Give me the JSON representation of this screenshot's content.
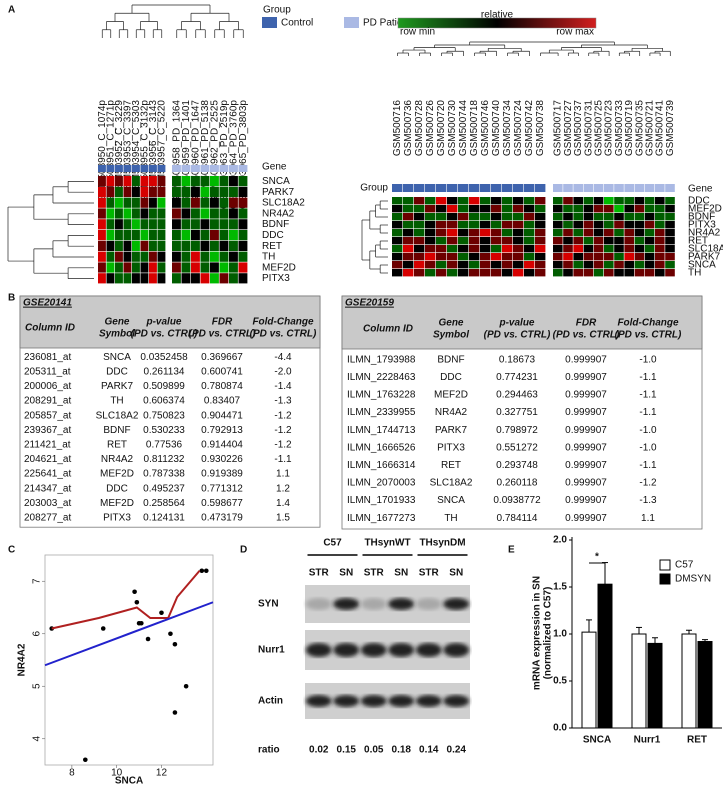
{
  "panel_labels": [
    "A",
    "B",
    "C",
    "D",
    "E"
  ],
  "group_legend": {
    "title": "Group",
    "items": [
      {
        "name": "Control",
        "color": "#3e63ad"
      },
      {
        "name": "PD Patient",
        "color": "#aab9e4"
      }
    ]
  },
  "color_scale": {
    "title": "relative",
    "min_label": "row min",
    "max_label": "row max"
  },
  "heatmaps": [
    {
      "group_label": "Group",
      "gene_label": "Gene",
      "samples": [
        "GSM503950_C_1074p",
        "GSM503951_C_1271p",
        "GSM503952_C_3229",
        "GSM503953_C_3397",
        "GSM503954_C_5303",
        "GSM503955_C_3132p",
        "GSM503956_C_3143",
        "GSM503957_C_5220",
        "GSM503958_PD_1364",
        "GSM503959_PD_1401",
        "GSM503960_PD_1647",
        "GSM503961_PD_5138",
        "GSM503962_PD_2525",
        "GSM503963_PD_2519p",
        "GSM503964_PD_3760p",
        "GSM503965_PD_3803p"
      ],
      "groups": [
        0,
        0,
        0,
        0,
        0,
        0,
        0,
        0,
        1,
        1,
        1,
        1,
        1,
        1,
        1,
        1
      ],
      "genes": [
        "SNCA",
        "PARK7",
        "SLC18A2",
        "NR4A2",
        "BDNF",
        "DDC",
        "RET",
        "TH",
        "MEF2D",
        "PITX3"
      ],
      "matrix": [
        [
          1,
          2,
          1,
          2,
          -1,
          2,
          2,
          1,
          -1,
          -2,
          -1,
          -1,
          -2,
          -1,
          0,
          -1
        ],
        [
          2,
          1,
          -1,
          1,
          0,
          2,
          1,
          1,
          -1,
          -1,
          0,
          -2,
          -1,
          -1,
          -1,
          0
        ],
        [
          2,
          -1,
          -2,
          -1,
          -1,
          1,
          0,
          -2,
          0,
          -1,
          1,
          -1,
          0,
          -1,
          1,
          1
        ],
        [
          1,
          -2,
          -1,
          -2,
          -1,
          0,
          -1,
          -1,
          1,
          0,
          -1,
          -2,
          -1,
          -1,
          0,
          -1
        ],
        [
          2,
          -1,
          0,
          -1,
          -2,
          -1,
          -1,
          -1,
          0,
          -1,
          -1,
          0,
          -1,
          -1,
          -1,
          0
        ],
        [
          2,
          -2,
          -1,
          -1,
          -1,
          -2,
          -1,
          -1,
          -1,
          -2,
          0,
          -1,
          1,
          -1,
          -2,
          -1
        ],
        [
          1,
          0,
          -1,
          0,
          -2,
          1,
          -1,
          -1,
          -1,
          -1,
          -1,
          0,
          -1,
          0,
          -1,
          0
        ],
        [
          2,
          -1,
          1,
          0,
          -1,
          -1,
          1,
          0,
          0,
          -1,
          2,
          -1,
          -2,
          -1,
          0,
          -1
        ],
        [
          1,
          -2,
          -1,
          1,
          -1,
          0,
          2,
          -1,
          1,
          -1,
          2,
          -1,
          0,
          -2,
          -1,
          2
        ],
        [
          2,
          0,
          -1,
          -1,
          0,
          0,
          2,
          0,
          -1,
          0,
          0,
          2,
          -2,
          1,
          -1,
          0
        ]
      ]
    },
    {
      "group_label": "Group",
      "gene_label": "Gene",
      "samples": [
        "GSM500716",
        "GSM500736",
        "GSM500728",
        "GSM500726",
        "GSM500720",
        "GSM500730",
        "GSM500744",
        "GSM500718",
        "GSM500746",
        "GSM500740",
        "GSM500734",
        "GSM500724",
        "GSM500742",
        "GSM500738",
        "GSM500717",
        "GSM500727",
        "GSM500737",
        "GSM500731",
        "GSM500725",
        "GSM500723",
        "GSM500733",
        "GSM500719",
        "GSM500735",
        "GSM500721",
        "GSM500741",
        "GSM500739"
      ],
      "groups": [
        0,
        0,
        0,
        0,
        0,
        0,
        0,
        0,
        0,
        0,
        0,
        0,
        0,
        0,
        1,
        1,
        1,
        1,
        1,
        1,
        1,
        1,
        1,
        1,
        1,
        1
      ],
      "genes": [
        "DDC",
        "MEF2D",
        "BDNF",
        "PITX3",
        "NR4A2",
        "RET",
        "SLC18A2",
        "PARK7",
        "SNCA",
        "TH"
      ],
      "matrix": [
        [
          -1,
          -1,
          1,
          -1,
          2,
          0,
          -1,
          2,
          -1,
          0,
          -1,
          0,
          -1,
          1,
          -1,
          1,
          0,
          -1,
          0,
          -2,
          -1,
          -1,
          0,
          -1,
          0,
          -1
        ],
        [
          0,
          -1,
          -1,
          1,
          0,
          2,
          -1,
          0,
          0,
          1,
          -1,
          1,
          0,
          -1,
          0,
          -1,
          -1,
          0,
          1,
          1,
          -2,
          0,
          1,
          -1,
          -1,
          0
        ],
        [
          -1,
          1,
          0,
          -1,
          -1,
          0,
          1,
          -1,
          -1,
          0,
          -1,
          -1,
          1,
          0,
          -1,
          0,
          -1,
          0,
          -1,
          -1,
          0,
          -1,
          -1,
          0,
          -1,
          -1
        ],
        [
          0,
          -1,
          -1,
          0,
          1,
          1,
          -1,
          -1,
          0,
          -1,
          1,
          1,
          -1,
          0,
          0,
          -1,
          0,
          1,
          0,
          -1,
          1,
          0,
          0,
          1,
          -1,
          0
        ],
        [
          -1,
          0,
          -1,
          0,
          1,
          2,
          0,
          1,
          2,
          1,
          -1,
          0,
          -1,
          1,
          -1,
          1,
          -1,
          1,
          0,
          1,
          -1,
          1,
          0,
          -1,
          1,
          0
        ],
        [
          0,
          1,
          1,
          0,
          -1,
          1,
          -1,
          1,
          0,
          1,
          1,
          0,
          -1,
          1,
          1,
          0,
          1,
          -1,
          1,
          0,
          0,
          1,
          -1,
          0,
          1,
          0
        ],
        [
          -1,
          2,
          0,
          1,
          1,
          -1,
          0,
          1,
          0,
          -1,
          2,
          1,
          0,
          2,
          0,
          1,
          2,
          0,
          1,
          -1,
          0,
          1,
          0,
          -1,
          1,
          0
        ],
        [
          0,
          1,
          1,
          2,
          1,
          1,
          -1,
          0,
          1,
          2,
          1,
          1,
          -1,
          0,
          1,
          2,
          0,
          1,
          1,
          1,
          -1,
          2,
          1,
          0,
          1,
          1
        ],
        [
          1,
          0,
          2,
          1,
          -1,
          1,
          0,
          -1,
          1,
          0,
          1,
          0,
          2,
          1,
          0,
          1,
          -1,
          0,
          1,
          -1,
          1,
          0,
          -1,
          0,
          1,
          -1
        ],
        [
          0,
          2,
          1,
          -1,
          1,
          -1,
          0,
          1,
          1,
          1,
          0,
          2,
          0,
          1,
          -1,
          0,
          1,
          1,
          -1,
          1,
          0,
          0,
          1,
          1,
          0,
          1
        ]
      ]
    }
  ],
  "tables": [
    {
      "title": "GSE20141",
      "columns": [
        [
          "Column ID"
        ],
        [
          "Gene",
          "Symbol"
        ],
        [
          "p-value",
          "(PD vs. CTRL)"
        ],
        [
          "FDR",
          "(PD vs. CTRL)"
        ],
        [
          "Fold-Change",
          "(PD vs. CTRL)"
        ]
      ],
      "rows": [
        [
          "236081_at",
          "SNCA",
          "0.0352458",
          "0.369667",
          "-4.4"
        ],
        [
          "205311_at",
          "DDC",
          "0.261134",
          "0.600741",
          "-2.0"
        ],
        [
          "200006_at",
          "PARK7",
          "0.509899",
          "0.780874",
          "-1.4"
        ],
        [
          "208291_at",
          "TH",
          "0.606374",
          "0.83407",
          "-1.3"
        ],
        [
          "205857_at",
          "SLC18A2",
          "0.750823",
          "0.904471",
          "-1.2"
        ],
        [
          "239367_at",
          "BDNF",
          "0.530233",
          "0.792913",
          "-1.2"
        ],
        [
          "211421_at",
          "RET",
          "0.77536",
          "0.914404",
          "-1.2"
        ],
        [
          "204621_at",
          "NR4A2",
          "0.811232",
          "0.930226",
          "-1.1"
        ],
        [
          "225641_at",
          "MEF2D",
          "0.787338",
          "0.919389",
          "1.1"
        ],
        [
          "214347_at",
          "DDC",
          "0.495237",
          "0.771312",
          "1.2"
        ],
        [
          "203003_at",
          "MEF2D",
          "0.258564",
          "0.598677",
          "1.4"
        ],
        [
          "208277_at",
          "PITX3",
          "0.124131",
          "0.473179",
          "1.5"
        ]
      ]
    },
    {
      "title": "GSE20159",
      "columns": [
        [
          "Column ID"
        ],
        [
          "Gene",
          "Symbol"
        ],
        [
          "p-value",
          "(PD vs. CTRL)"
        ],
        [
          "FDR",
          "(PD vs. CTRL)"
        ],
        [
          "Fold-Change",
          "(PD vs. CTRL)"
        ]
      ],
      "rows": [
        [
          "ILMN_1793988",
          "BDNF",
          "0.18673",
          "0.999907",
          "-1.0"
        ],
        [
          "ILMN_2228463",
          "DDC",
          "0.774231",
          "0.999907",
          "-1.1"
        ],
        [
          "ILMN_1763228",
          "MEF2D",
          "0.294463",
          "0.999907",
          "-1.1"
        ],
        [
          "ILMN_2339955",
          "NR4A2",
          "0.327751",
          "0.999907",
          "-1.1"
        ],
        [
          "ILMN_1744713",
          "PARK7",
          "0.798972",
          "0.999907",
          "-1.0"
        ],
        [
          "ILMN_1666526",
          "PITX3",
          "0.551272",
          "0.999907",
          "-1.0"
        ],
        [
          "ILMN_1666314",
          "RET",
          "0.293748",
          "0.999907",
          "-1.1"
        ],
        [
          "ILMN_2070003",
          "SLC18A2",
          "0.260118",
          "0.999907",
          "-1.2"
        ],
        [
          "ILMN_1701933",
          "SNCA",
          "0.0938772",
          "0.999907",
          "-1.3"
        ],
        [
          "ILMN_1677273",
          "TH",
          "0.784114",
          "0.999907",
          "1.1"
        ]
      ]
    }
  ],
  "chart_data": [
    {
      "type": "scatter",
      "xlabel": "SNCA",
      "ylabel": "NR4A2",
      "xlim": [
        6.8,
        14.3
      ],
      "ylim": [
        3.5,
        7.5
      ],
      "xticks": [
        8,
        10,
        12
      ],
      "yticks": [
        4,
        5,
        6,
        7
      ],
      "series": [
        {
          "mode": "markers",
          "color": "#000000",
          "x": [
            7.1,
            9.4,
            10.8,
            10.9,
            11.0,
            11.1,
            11.4,
            12.0,
            12.4,
            12.6,
            13.1,
            12.6,
            13.8,
            14.0,
            8.6
          ],
          "y": [
            6.1,
            6.1,
            6.8,
            6.6,
            6.2,
            6.2,
            5.9,
            6.4,
            6.0,
            5.8,
            5.0,
            4.5,
            7.2,
            7.2,
            3.6
          ]
        },
        {
          "mode": "line",
          "color": "#b02020",
          "x": [
            7.1,
            9.2,
            10.9,
            11.5,
            12.3,
            12.7,
            13.7
          ],
          "y": [
            6.1,
            6.3,
            6.5,
            6.3,
            6.3,
            6.7,
            7.2
          ]
        },
        {
          "mode": "line",
          "color": "#2222cc",
          "x": [
            6.8,
            14.3
          ],
          "y": [
            5.4,
            6.6
          ]
        }
      ]
    },
    {
      "type": "bar",
      "ylabel": [
        "mRNA expression in SN",
        "(normalized to C57)"
      ],
      "categories": [
        "SNCA",
        "Nurr1",
        "RET"
      ],
      "ylim": [
        0,
        2.0
      ],
      "yticks": [
        {
          "value": 0,
          "label": "0.0"
        },
        {
          "value": 0.5,
          "label": "0.5"
        },
        {
          "value": 1.0,
          "label": "1.0"
        },
        {
          "value": 1.5,
          "label": "1.5"
        },
        {
          "value": 2.0,
          "label": "2.0"
        }
      ],
      "legend": "upper right",
      "series": [
        {
          "name": "C57",
          "color": "#ffffff",
          "values": [
            1.02,
            1.0,
            1.0
          ],
          "errors": [
            0.13,
            0.07,
            0.04
          ]
        },
        {
          "name": "DMSYN",
          "color": "#000000",
          "values": [
            1.53,
            0.9,
            0.92
          ],
          "errors": [
            0.23,
            0.06,
            0.02
          ]
        }
      ],
      "annotations": [
        {
          "text": "*",
          "category": 0
        }
      ]
    }
  ],
  "blot": {
    "groups": [
      "C57",
      "THsynWT",
      "THsynDM"
    ],
    "lanes": [
      "STR",
      "SN",
      "STR",
      "SN",
      "STR",
      "SN"
    ],
    "rows": [
      "SYN",
      "Nurr1",
      "Actin"
    ],
    "ratio_label": "ratio",
    "ratios": [
      0.02,
      0.15,
      0.05,
      0.18,
      0.14,
      0.24
    ]
  }
}
